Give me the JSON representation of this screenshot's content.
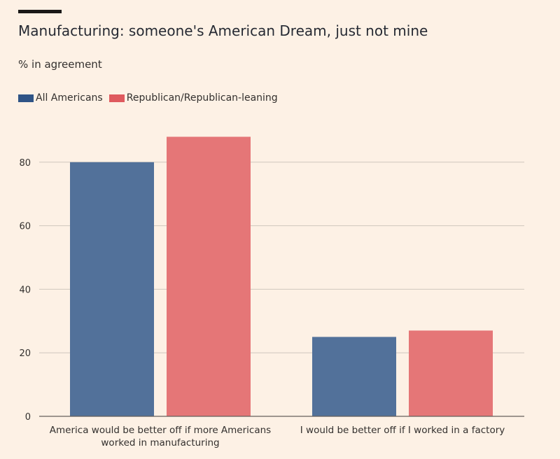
{
  "chart_data": {
    "type": "bar",
    "title": "Manufacturing: someone's American Dream, just not mine",
    "subtitle": "% in agreement",
    "categories": [
      [
        "America would be better off if more Americans",
        "worked in manufacturing"
      ],
      [
        "I would be better off if I worked in a factory"
      ]
    ],
    "series": [
      {
        "name": "All Americans",
        "color": "#52719a",
        "values": [
          80,
          25
        ]
      },
      {
        "name": "Republican/Republican-leaning",
        "color": "#e57677",
        "values": [
          88,
          27
        ]
      }
    ],
    "ylim": [
      0,
      90
    ],
    "yticks": [
      0,
      20,
      40,
      60,
      80
    ],
    "grid": true,
    "legend": "top-left",
    "xlabel": "",
    "ylabel": ""
  },
  "colors": {
    "background": "#fdf1e5",
    "gridline": "#cfc6bd",
    "axis": "#66605c",
    "legend_blue": "#2f5486",
    "legend_red": "#df5a5e"
  }
}
